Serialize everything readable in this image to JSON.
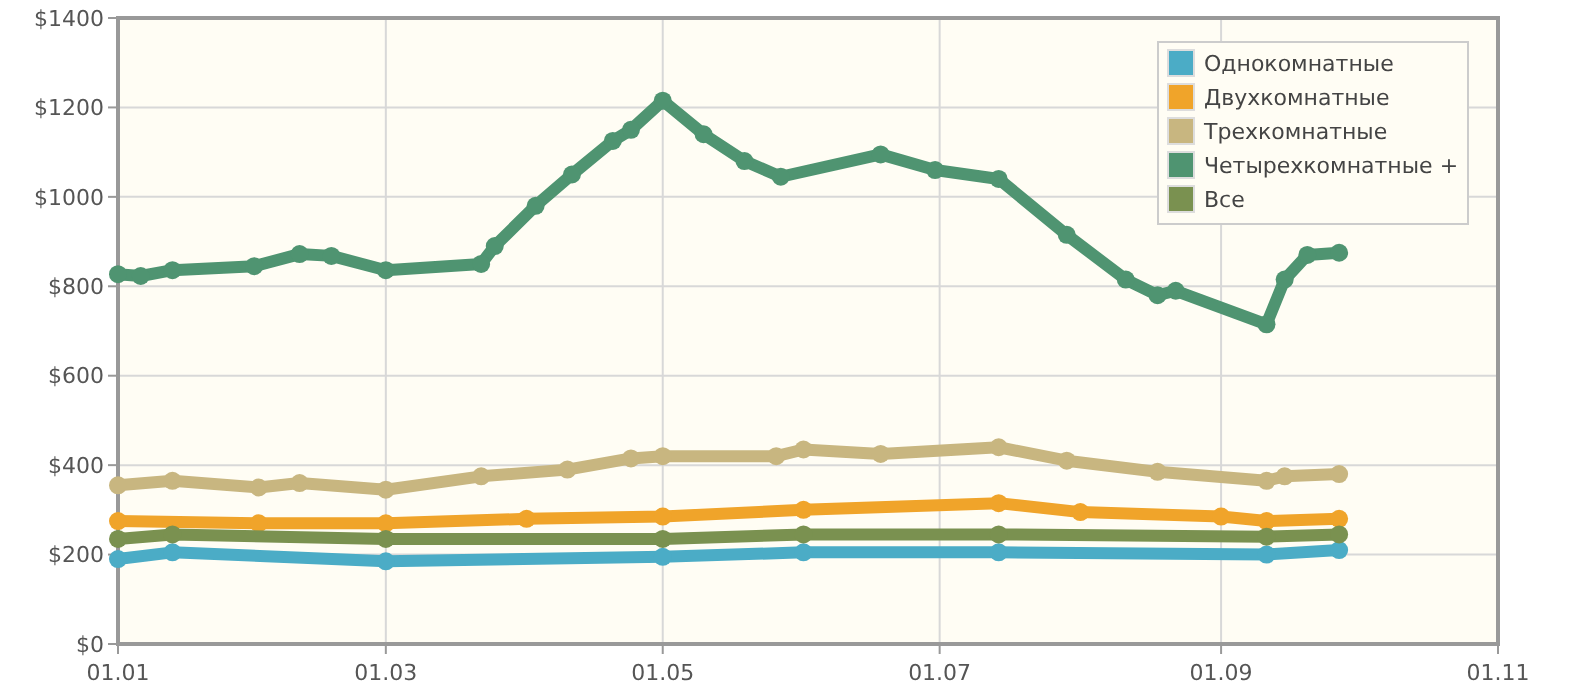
{
  "chart_data": {
    "type": "line",
    "xlim": [
      "--01-01",
      "--11-01"
    ],
    "xticks": [
      {
        "value": "--01-01",
        "label": "01.01"
      },
      {
        "value": "--03-01",
        "label": "01.03"
      },
      {
        "value": "--05-01",
        "label": "01.05"
      },
      {
        "value": "--07-01",
        "label": "01.07"
      },
      {
        "value": "--09-01",
        "label": "01.09"
      },
      {
        "value": "--11-01",
        "label": "01.11"
      }
    ],
    "ylim": [
      0,
      1400
    ],
    "yticks": [
      {
        "value": 0,
        "label": "$0"
      },
      {
        "value": 200,
        "label": "$200"
      },
      {
        "value": 400,
        "label": "$400"
      },
      {
        "value": 600,
        "label": "$600"
      },
      {
        "value": 800,
        "label": "$800"
      },
      {
        "value": 1000,
        "label": "$1000"
      },
      {
        "value": 1200,
        "label": "$1200"
      },
      {
        "value": 1400,
        "label": "$1400"
      }
    ],
    "grid": true,
    "legend": "top right",
    "marker": "circle",
    "line_style": "solid",
    "series": [
      {
        "name": "Однокомнатные",
        "color": "#4bacc6",
        "x": [
          "--01-01",
          "--01-13",
          "--03-01",
          "--05-01",
          "--06-01",
          "--07-14",
          "--09-11",
          "--09-27"
        ],
        "values": [
          190,
          205,
          185,
          195,
          205,
          205,
          200,
          210
        ]
      },
      {
        "name": "Двухкомнатные",
        "color": "#f0a42a",
        "x": [
          "--01-01",
          "--02-01",
          "--03-01",
          "--04-01",
          "--05-01",
          "--06-01",
          "--07-14",
          "--08-01",
          "--09-01",
          "--09-11",
          "--09-27"
        ],
        "values": [
          275,
          270,
          270,
          280,
          285,
          300,
          315,
          295,
          285,
          275,
          280
        ]
      },
      {
        "name": "Трехкомнатные",
        "color": "#c8b680",
        "x": [
          "--01-01",
          "--01-13",
          "--02-01",
          "--02-10",
          "--03-01",
          "--03-22",
          "--04-10",
          "--04-24",
          "--05-01",
          "--05-26",
          "--06-01",
          "--06-18",
          "--07-14",
          "--07-29",
          "--08-18",
          "--09-11",
          "--09-15",
          "--09-27"
        ],
        "values": [
          355,
          365,
          350,
          360,
          345,
          375,
          390,
          415,
          420,
          420,
          435,
          425,
          440,
          410,
          385,
          365,
          375,
          380
        ]
      },
      {
        "name": "Четырехкомнатные +",
        "color": "#4f9471",
        "x": [
          "--01-01",
          "--01-06",
          "--01-13",
          "--01-31",
          "--02-10",
          "--02-17",
          "--03-01",
          "--03-22",
          "--03-25",
          "--04-03",
          "--04-11",
          "--04-20",
          "--04-24",
          "--05-01",
          "--05-10",
          "--05-19",
          "--05-27",
          "--06-18",
          "--06-30",
          "--07-14",
          "--07-29",
          "--08-11",
          "--08-18",
          "--08-22",
          "--09-11",
          "--09-15",
          "--09-20",
          "--09-27"
        ],
        "values": [
          827,
          823,
          836,
          845,
          872,
          868,
          836,
          850,
          890,
          980,
          1050,
          1125,
          1150,
          1215,
          1140,
          1080,
          1045,
          1095,
          1060,
          1040,
          915,
          815,
          780,
          790,
          715,
          815,
          870,
          875
        ]
      },
      {
        "name": "Все",
        "color": "#7a9150",
        "x": [
          "--01-01",
          "--01-13",
          "--03-01",
          "--05-01",
          "--06-01",
          "--07-14",
          "--09-11",
          "--09-27"
        ],
        "values": [
          235,
          245,
          235,
          235,
          245,
          245,
          240,
          245
        ]
      }
    ]
  }
}
